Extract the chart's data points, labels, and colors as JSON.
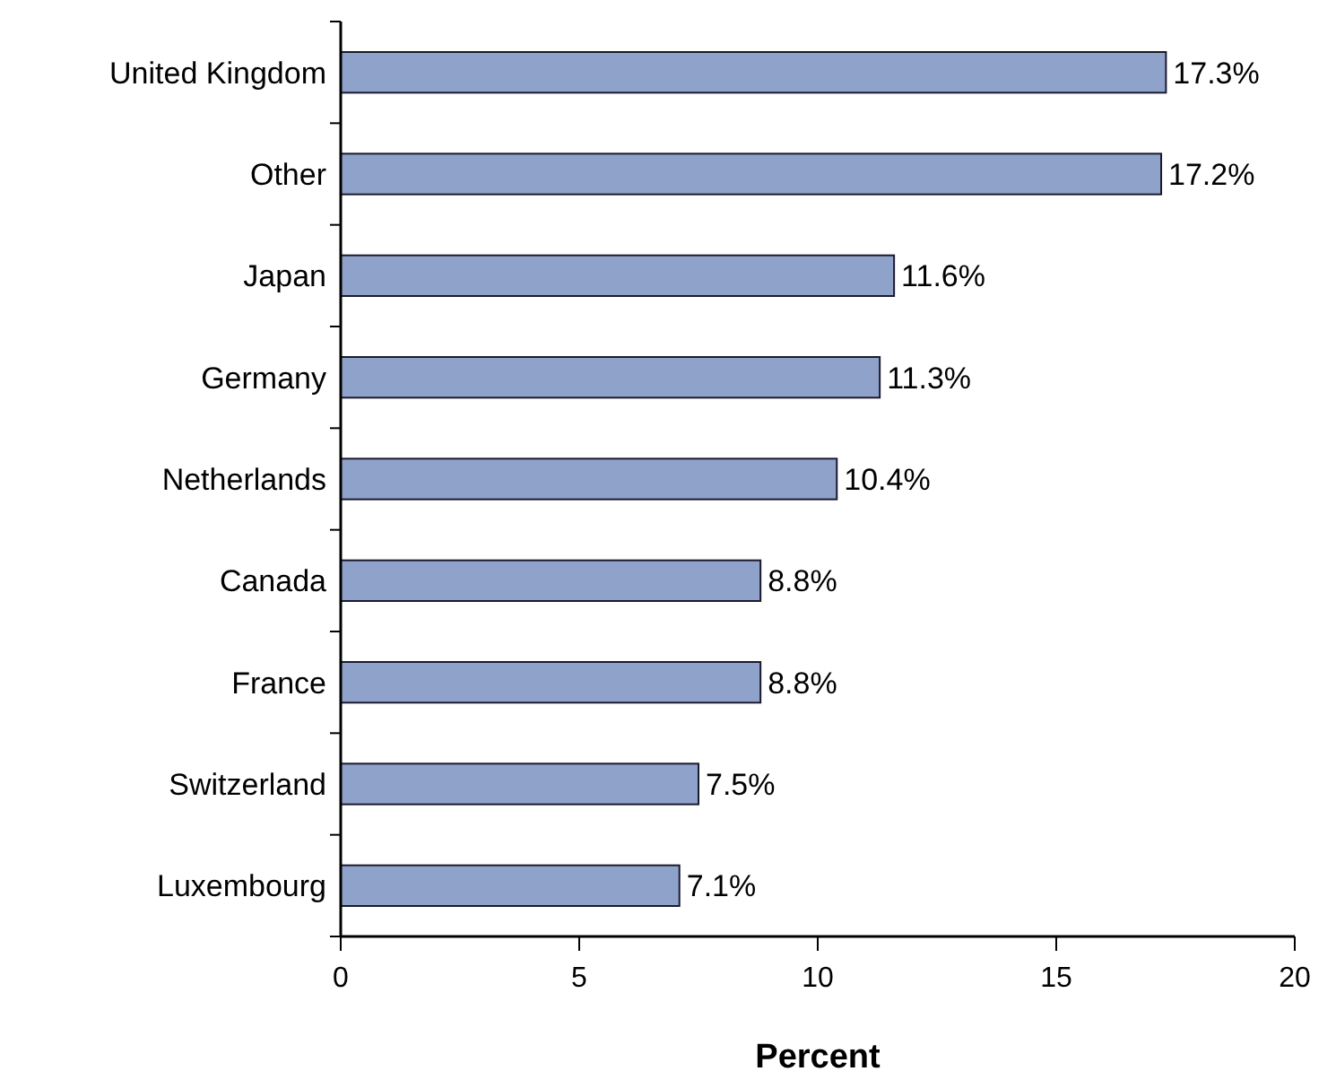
{
  "chart_data": {
    "type": "bar",
    "orientation": "horizontal",
    "xlabel": "Percent",
    "categories": [
      "United Kingdom",
      "Other",
      "Japan",
      "Germany",
      "Netherlands",
      "Canada",
      "France",
      "Switzerland",
      "Luxembourg"
    ],
    "values": [
      17.3,
      17.2,
      11.6,
      11.3,
      10.4,
      8.8,
      8.8,
      7.5,
      7.1
    ],
    "value_labels": [
      "17.3%",
      "17.2%",
      "11.6%",
      "11.3%",
      "10.4%",
      "8.8%",
      "8.8%",
      "7.5%",
      "7.1%"
    ],
    "color": "#8fa2c9",
    "xlim": [
      0,
      20
    ],
    "xticks": [
      0,
      5,
      10,
      15,
      20
    ],
    "grid": false
  }
}
